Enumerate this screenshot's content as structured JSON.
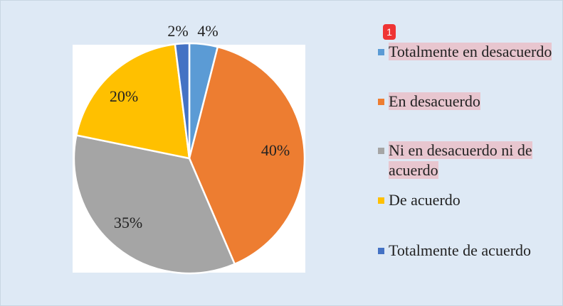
{
  "chart_data": {
    "type": "pie",
    "categories": [
      "Totalmente en desacuerdo",
      "En desacuerdo",
      "Ni en desacuerdo ni de acuerdo",
      "De acuerdo",
      "Totalmente de acuerdo"
    ],
    "values": [
      4,
      40,
      35,
      20,
      2
    ],
    "value_labels": [
      "4%",
      "40%",
      "35%",
      "20%",
      "2%"
    ],
    "colors": [
      "#5b9bd5",
      "#ed7d31",
      "#a5a5a5",
      "#ffc000",
      "#4472c4"
    ],
    "legend": "right",
    "annotations": [
      "1"
    ]
  }
}
